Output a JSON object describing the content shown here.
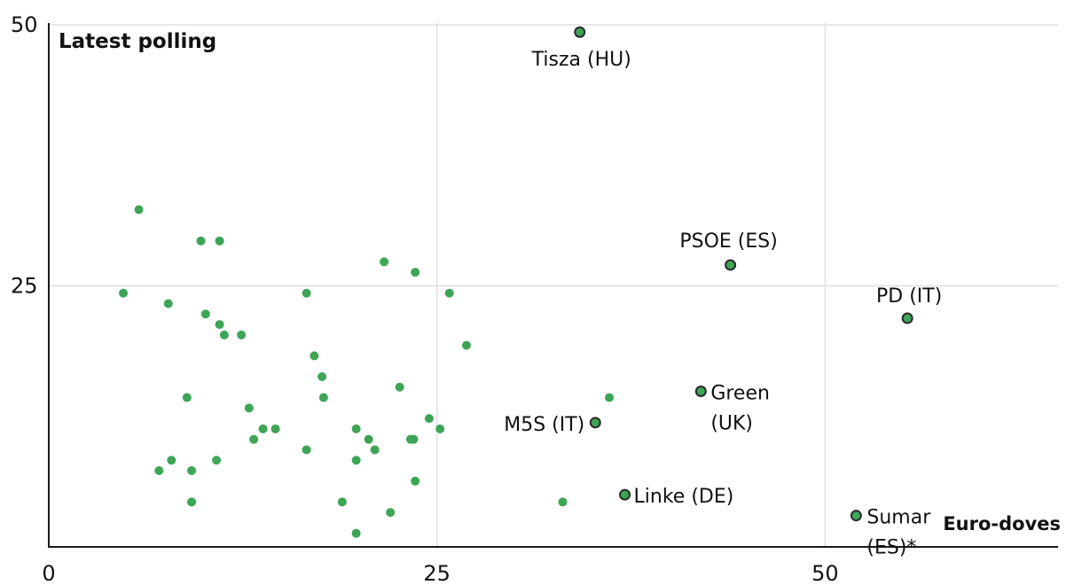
{
  "chart_data": {
    "type": "scatter",
    "title": "Latest polling",
    "xlabel": "Euro-doves",
    "ylabel": "",
    "xlim": [
      0,
      65
    ],
    "ylim": [
      0,
      50
    ],
    "x_ticks": [
      "0",
      "25",
      "50"
    ],
    "y_ticks": [
      "25",
      "50"
    ],
    "grid": true,
    "point_color": "#3da556",
    "point_outline_color": "#2a2a2a",
    "labeled_points": [
      {
        "label": "Tisza (HU)",
        "x": 34.2,
        "y": 49.3
      },
      {
        "label": "PSOE (ES)",
        "x": 43.9,
        "y": 27.0
      },
      {
        "label": "PD (IT)",
        "x": 55.3,
        "y": 21.9
      },
      {
        "label": "Green\n(UK)",
        "x": 42.0,
        "y": 14.9
      },
      {
        "label": "M5S (IT)",
        "x": 35.2,
        "y": 11.9
      },
      {
        "label": "Linke (DE)",
        "x": 37.1,
        "y": 5.0
      },
      {
        "label": "Sumar\n(ES)*",
        "x": 52.0,
        "y": 3.0
      }
    ],
    "points": [
      {
        "x": 5.8,
        "y": 32.3
      },
      {
        "x": 9.8,
        "y": 29.3
      },
      {
        "x": 11.0,
        "y": 29.3
      },
      {
        "x": 21.6,
        "y": 27.3
      },
      {
        "x": 23.6,
        "y": 26.3
      },
      {
        "x": 4.8,
        "y": 24.3
      },
      {
        "x": 16.6,
        "y": 24.3
      },
      {
        "x": 25.8,
        "y": 24.3
      },
      {
        "x": 7.7,
        "y": 23.3
      },
      {
        "x": 10.1,
        "y": 22.3
      },
      {
        "x": 11.0,
        "y": 21.3
      },
      {
        "x": 11.3,
        "y": 20.3
      },
      {
        "x": 12.4,
        "y": 20.3
      },
      {
        "x": 26.9,
        "y": 19.3
      },
      {
        "x": 17.1,
        "y": 18.3
      },
      {
        "x": 17.6,
        "y": 16.3
      },
      {
        "x": 22.6,
        "y": 15.3
      },
      {
        "x": 8.9,
        "y": 14.3
      },
      {
        "x": 17.7,
        "y": 14.3
      },
      {
        "x": 36.1,
        "y": 14.3
      },
      {
        "x": 12.9,
        "y": 13.3
      },
      {
        "x": 24.5,
        "y": 12.3
      },
      {
        "x": 13.8,
        "y": 11.3
      },
      {
        "x": 14.6,
        "y": 11.3
      },
      {
        "x": 19.8,
        "y": 11.3
      },
      {
        "x": 25.2,
        "y": 11.3
      },
      {
        "x": 13.2,
        "y": 10.3
      },
      {
        "x": 20.6,
        "y": 10.3
      },
      {
        "x": 23.3,
        "y": 10.3
      },
      {
        "x": 23.5,
        "y": 10.3
      },
      {
        "x": 16.6,
        "y": 9.3
      },
      {
        "x": 21.0,
        "y": 9.3
      },
      {
        "x": 7.9,
        "y": 8.3
      },
      {
        "x": 10.8,
        "y": 8.3
      },
      {
        "x": 19.8,
        "y": 8.3
      },
      {
        "x": 7.1,
        "y": 7.3
      },
      {
        "x": 9.2,
        "y": 7.3
      },
      {
        "x": 23.6,
        "y": 6.3
      },
      {
        "x": 9.2,
        "y": 4.3
      },
      {
        "x": 18.9,
        "y": 4.3
      },
      {
        "x": 33.1,
        "y": 4.3
      },
      {
        "x": 22.0,
        "y": 3.3
      },
      {
        "x": 19.8,
        "y": 1.3
      }
    ]
  }
}
